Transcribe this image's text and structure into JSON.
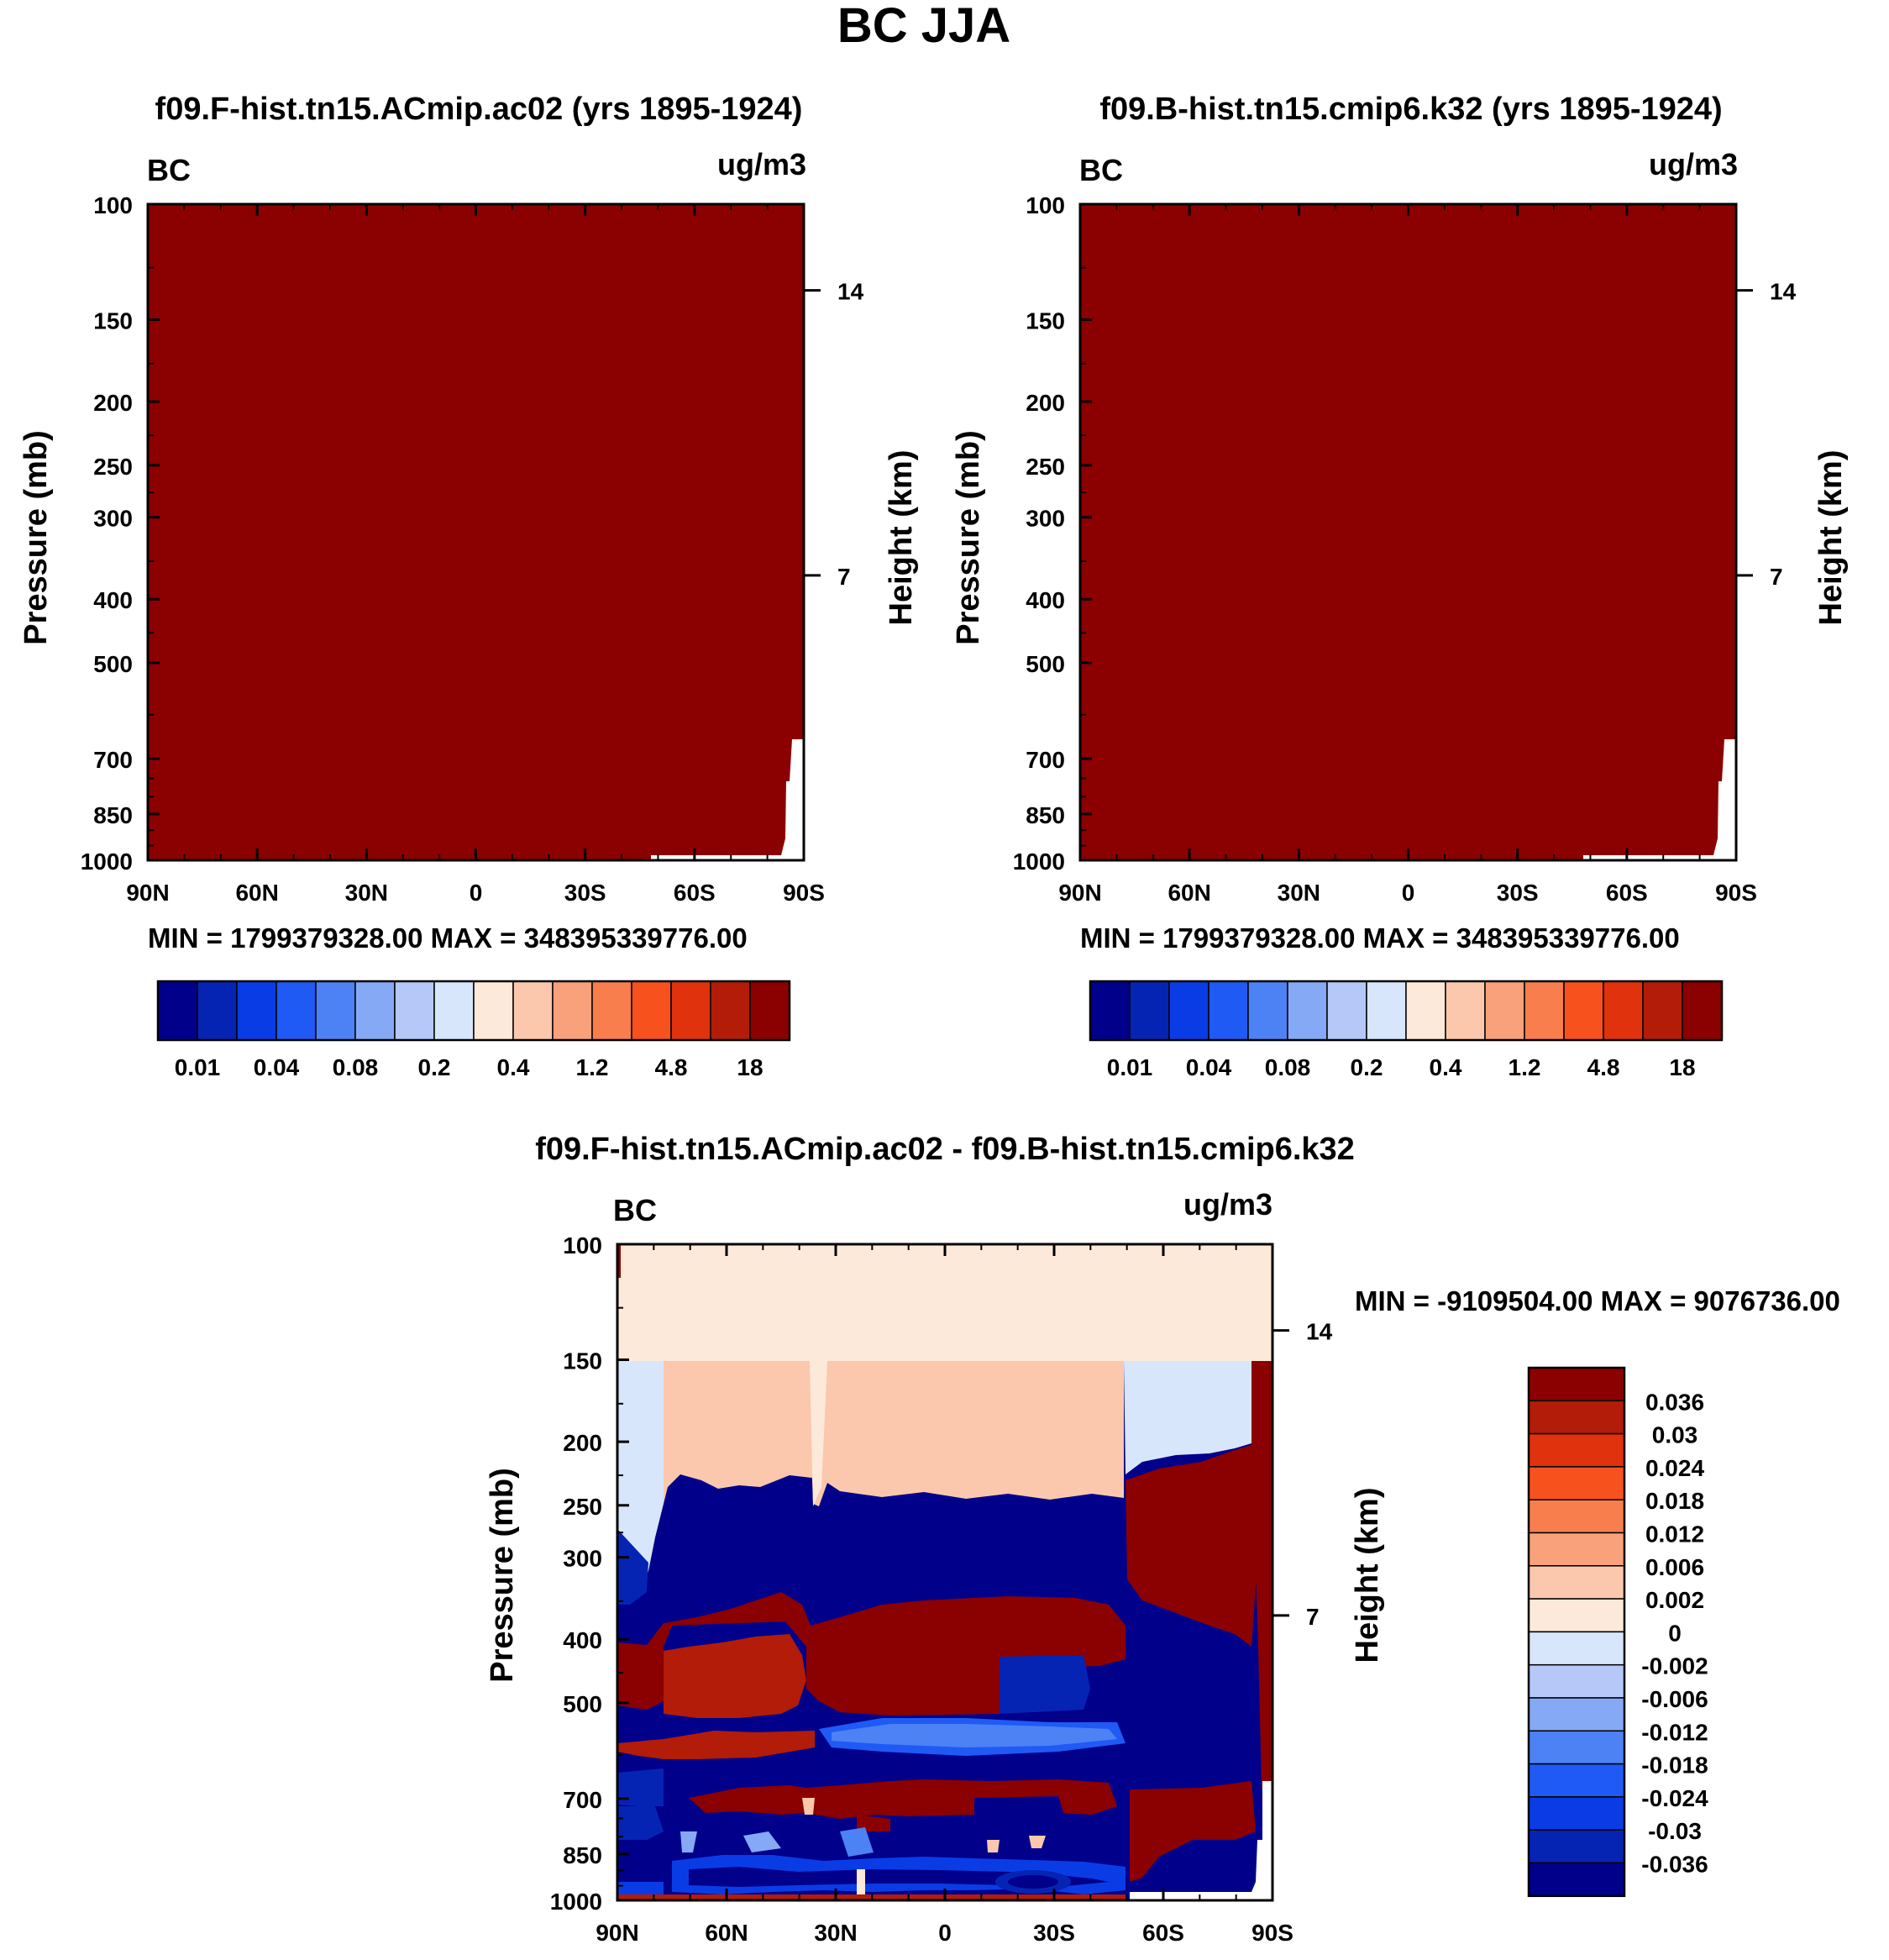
{
  "title": "BC JJA",
  "panels": [
    {
      "id": "top-left",
      "title": "f09.F-hist.tn15.ACmip.ac02 (yrs 1895-1924)",
      "left_label": "BC",
      "right_label": "ug/m3",
      "ylabel": "Pressure (mb)",
      "y2label": "Height (km)",
      "stats": "MIN = 1799379328.00   MAX = 348395339776.00"
    },
    {
      "id": "top-right",
      "title": "f09.B-hist.tn15.cmip6.k32 (yrs 1895-1924)",
      "left_label": "BC",
      "right_label": "ug/m3",
      "ylabel": "Pressure (mb)",
      "y2label": "Height (km)",
      "stats": "MIN = 1799379328.00   MAX = 348395339776.00"
    },
    {
      "id": "bottom",
      "title": "f09.F-hist.tn15.ACmip.ac02 - f09.B-hist.tn15.cmip6.k32",
      "left_label": "BC",
      "right_label": "ug/m3",
      "ylabel": "Pressure (mb)",
      "y2label": "Height (km)",
      "stats": "MIN = -9109504.00   MAX = 9076736.00"
    }
  ],
  "chart_data": [
    {
      "type": "heatmap",
      "title": "f09.F-hist.tn15.ACmip.ac02 (yrs 1895-1924)",
      "xlabel": "",
      "ylabel": "Pressure (mb)",
      "y2label": "Height (km)",
      "x_ticks": [
        "90N",
        "60N",
        "30N",
        "0",
        "30S",
        "60S",
        "90S"
      ],
      "y_ticks": [
        100,
        150,
        200,
        250,
        300,
        400,
        500,
        700,
        850,
        1000
      ],
      "y2_ticks": [
        14,
        7
      ],
      "ylim": [
        1000,
        100
      ],
      "field": "uniform",
      "fill_level": "above 18",
      "min": 1799379328.0,
      "max": 348395339776.0
    },
    {
      "type": "heatmap",
      "title": "f09.B-hist.tn15.cmip6.k32 (yrs 1895-1924)",
      "xlabel": "",
      "ylabel": "Pressure (mb)",
      "y2label": "Height (km)",
      "x_ticks": [
        "90N",
        "60N",
        "30N",
        "0",
        "30S",
        "60S",
        "90S"
      ],
      "y_ticks": [
        100,
        150,
        200,
        250,
        300,
        400,
        500,
        700,
        850,
        1000
      ],
      "y2_ticks": [
        14,
        7
      ],
      "ylim": [
        1000,
        100
      ],
      "field": "uniform",
      "fill_level": "above 18",
      "min": 1799379328.0,
      "max": 348395339776.0
    },
    {
      "type": "heatmap",
      "title": "f09.F-hist.tn15.ACmip.ac02 - f09.B-hist.tn15.cmip6.k32",
      "xlabel": "",
      "ylabel": "Pressure (mb)",
      "y2label": "Height (km)",
      "x_ticks": [
        "90N",
        "60N",
        "30N",
        "0",
        "30S",
        "60S",
        "90S"
      ],
      "y_ticks": [
        100,
        150,
        200,
        250,
        300,
        400,
        500,
        700,
        850,
        1000
      ],
      "y2_ticks": [
        14,
        7
      ],
      "ylim": [
        1000,
        100
      ],
      "field": "layered difference",
      "min": -9109504.0,
      "max": 9076736.0
    }
  ],
  "colorbar_top": {
    "colors": [
      "#00008b",
      "#0524b4",
      "#0a3ce6",
      "#1f5af5",
      "#4d82f5",
      "#86a9f5",
      "#b5c8f8",
      "#d7e6fa",
      "#fce9d9",
      "#fbc8ad",
      "#f9a17b",
      "#f87e4d",
      "#f7521d",
      "#e0320c",
      "#b21c08",
      "#8b0000"
    ],
    "labels": [
      "0.01",
      "0.04",
      "0.08",
      "0.2",
      "0.4",
      "1.2",
      "4.8",
      "18"
    ]
  },
  "colorbar_diff": {
    "colors": [
      "#00008b",
      "#0524b4",
      "#0a3ce6",
      "#1f5af5",
      "#4d82f5",
      "#86a9f5",
      "#b5c8f8",
      "#d7e6fa",
      "#fce9d9",
      "#fbc8ad",
      "#f9a17b",
      "#f87e4d",
      "#f7521d",
      "#e0320c",
      "#b21c08",
      "#8b0000"
    ],
    "labels": [
      "0.036",
      "0.03",
      "0.024",
      "0.018",
      "0.012",
      "0.006",
      "0.002",
      "0",
      "-0.002",
      "-0.006",
      "-0.012",
      "-0.018",
      "-0.024",
      "-0.03",
      "-0.036"
    ]
  }
}
